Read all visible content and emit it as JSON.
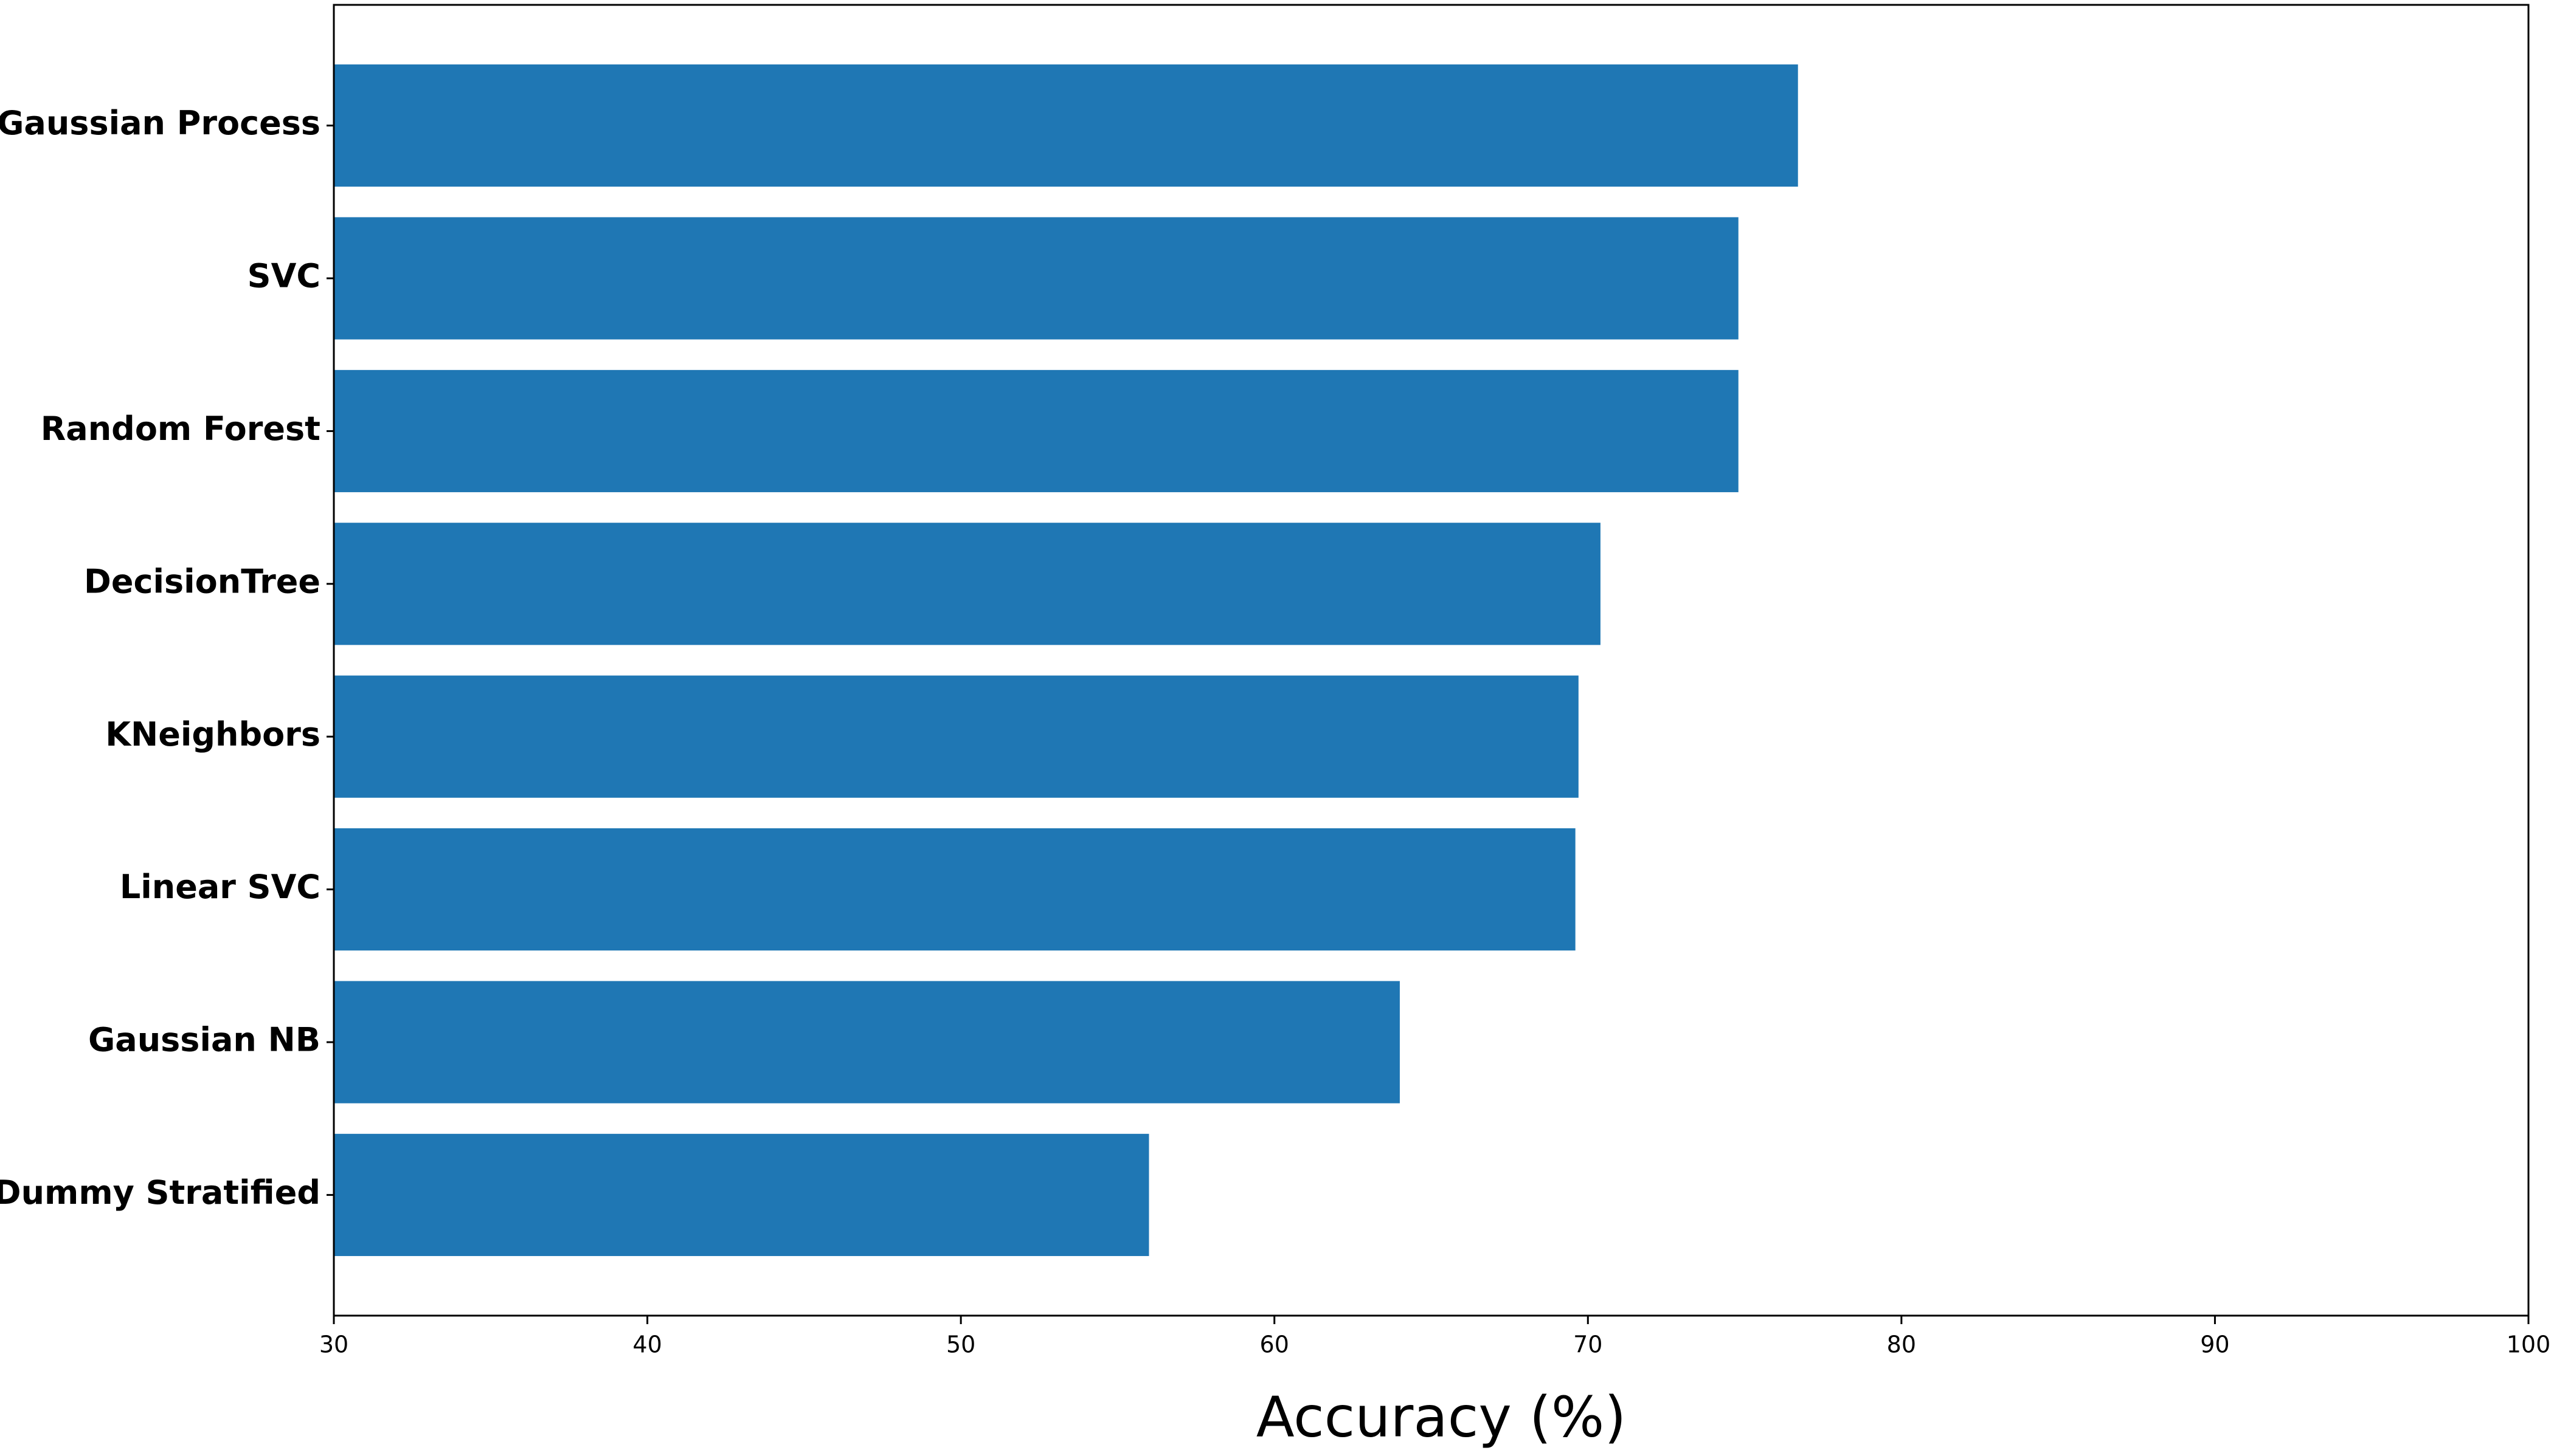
{
  "chart_data": {
    "type": "barh",
    "xlabel": "Accuracy (%)",
    "categories": [
      "Gaussian Process",
      "SVC",
      "Random Forest",
      "DecisionTree",
      "KNeighbors",
      "Linear SVC",
      "Gaussian NB",
      "Dummy Stratified"
    ],
    "values": [
      76.7,
      74.8,
      74.8,
      70.4,
      69.7,
      69.6,
      64.0,
      56.0
    ],
    "color": "#1f77b4",
    "xlim": [
      30,
      100
    ],
    "xticks": [
      30,
      40,
      50,
      60,
      70,
      80,
      90,
      100
    ]
  }
}
